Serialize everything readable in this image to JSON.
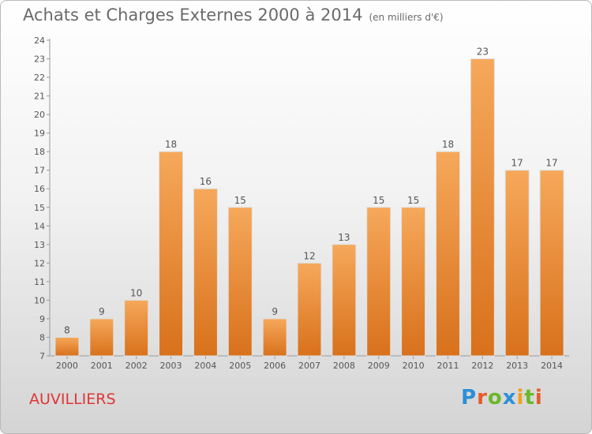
{
  "title": "Achats et Charges Externes 2000 à 2014",
  "unit": "(en milliers d'€)",
  "place": "AUVILLIERS",
  "logo": "Proxiti",
  "colors": {
    "bar_top": "#f6a85a",
    "bar_bottom": "#d8711c",
    "title": "#6a6a6a",
    "place": "#e03535"
  },
  "chart_data": {
    "type": "bar",
    "title": "Achats et Charges Externes 2000 à 2014",
    "subtitle": "(en milliers d'€)",
    "xlabel": "",
    "ylabel": "",
    "categories": [
      "2000",
      "2001",
      "2002",
      "2003",
      "2004",
      "2005",
      "2006",
      "2007",
      "2008",
      "2009",
      "2010",
      "2011",
      "2012",
      "2013",
      "2014"
    ],
    "values": [
      8,
      9,
      10,
      18,
      16,
      15,
      9,
      12,
      13,
      15,
      15,
      18,
      23,
      17,
      17
    ],
    "ylim": [
      7,
      24
    ],
    "yticks": [
      7,
      8,
      9,
      10,
      11,
      12,
      13,
      14,
      15,
      16,
      17,
      18,
      19,
      20,
      21,
      22,
      23,
      24
    ],
    "grid": false,
    "data_labels": true
  }
}
